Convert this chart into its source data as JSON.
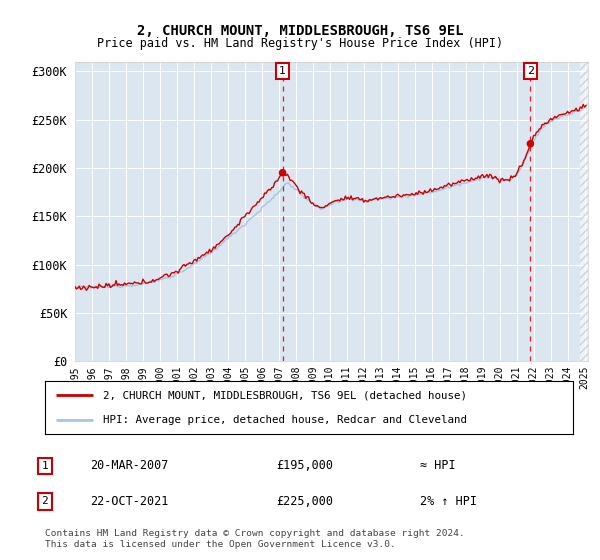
{
  "title": "2, CHURCH MOUNT, MIDDLESBROUGH, TS6 9EL",
  "subtitle": "Price paid vs. HM Land Registry's House Price Index (HPI)",
  "ylim": [
    0,
    310000
  ],
  "yticks": [
    0,
    50000,
    100000,
    150000,
    200000,
    250000,
    300000
  ],
  "ytick_labels": [
    "£0",
    "£50K",
    "£100K",
    "£150K",
    "£200K",
    "£250K",
    "£300K"
  ],
  "bg_color": "#dce6f1",
  "hpi_color": "#a8c4e0",
  "price_color": "#cc0000",
  "marker1_label": "20-MAR-2007",
  "marker1_price": "£195,000",
  "marker1_vs": "≈ HPI",
  "marker2_label": "22-OCT-2021",
  "marker2_price": "£225,000",
  "marker2_vs": "2% ↑ HPI",
  "legend1": "2, CHURCH MOUNT, MIDDLESBROUGH, TS6 9EL (detached house)",
  "legend2": "HPI: Average price, detached house, Redcar and Cleveland",
  "footer": "Contains HM Land Registry data © Crown copyright and database right 2024.\nThis data is licensed under the Open Government Licence v3.0.",
  "sale1_t": 2007.22,
  "sale1_v": 195000,
  "sale2_t": 2021.81,
  "sale2_v": 225000
}
